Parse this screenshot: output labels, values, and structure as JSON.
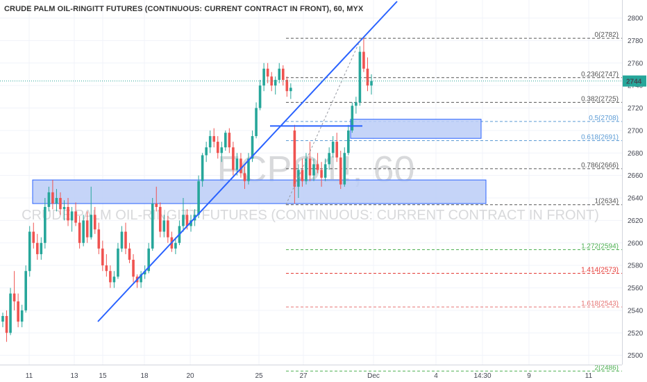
{
  "header": {
    "title": "CRUDE PALM OIL-RINGITT FUTURES (CONTINUOUS: CURRENT CONTRACT IN FRONT), 60, MYX"
  },
  "watermark": {
    "symbol": "FCPO1!, 60",
    "description": "CRUDE PALM OIL-RINGITT FUTURES (CONTINUOUS: CURRENT CONTRACT IN FRONT)"
  },
  "chart_data": {
    "type": "candlestick",
    "title": "CRUDE PALM OIL-RINGITT FUTURES (CONTINUOUS: CURRENT CONTRACT IN FRONT), 60, MYX",
    "y_axis": {
      "ticks": [
        2500,
        2520,
        2540,
        2560,
        2580,
        2600,
        2620,
        2640,
        2660,
        2680,
        2700,
        2720,
        2740,
        2760,
        2780,
        2800
      ],
      "ylim": [
        2482,
        2810
      ],
      "position": "right"
    },
    "x_axis": {
      "ticks": [
        "11",
        "13",
        "15",
        "18",
        "20",
        "25",
        "27",
        "Dec",
        "4",
        "14:30",
        "9",
        "11"
      ]
    },
    "last_price": 2744,
    "colors": {
      "up": "#26a69a",
      "down": "#ef5350",
      "trendline": "#2962ff",
      "zone_fill": "#bbccf7",
      "zone_border": "#2962ff",
      "last_price_line": "#26a69a"
    },
    "candles": [
      [
        2530,
        2538,
        2525,
        2535
      ],
      [
        2535,
        2540,
        2512,
        2520
      ],
      [
        2520,
        2560,
        2518,
        2555
      ],
      [
        2555,
        2575,
        2540,
        2548
      ],
      [
        2548,
        2555,
        2525,
        2530
      ],
      [
        2530,
        2545,
        2525,
        2540
      ],
      [
        2540,
        2580,
        2538,
        2575
      ],
      [
        2575,
        2615,
        2570,
        2610
      ],
      [
        2610,
        2618,
        2595,
        2600
      ],
      [
        2600,
        2608,
        2585,
        2590
      ],
      [
        2590,
        2605,
        2585,
        2600
      ],
      [
        2600,
        2640,
        2595,
        2632
      ],
      [
        2632,
        2650,
        2628,
        2645
      ],
      [
        2645,
        2656,
        2630,
        2635
      ],
      [
        2635,
        2648,
        2628,
        2640
      ],
      [
        2640,
        2645,
        2625,
        2630
      ],
      [
        2630,
        2638,
        2620,
        2632
      ],
      [
        2632,
        2640,
        2615,
        2620
      ],
      [
        2620,
        2632,
        2610,
        2628
      ],
      [
        2628,
        2636,
        2615,
        2618
      ],
      [
        2618,
        2624,
        2595,
        2600
      ],
      [
        2600,
        2625,
        2597,
        2620
      ],
      [
        2620,
        2628,
        2600,
        2605
      ],
      [
        2605,
        2650,
        2603,
        2625
      ],
      [
        2625,
        2632,
        2608,
        2612
      ],
      [
        2612,
        2618,
        2590,
        2595
      ],
      [
        2595,
        2602,
        2575,
        2580
      ],
      [
        2580,
        2590,
        2570,
        2575
      ],
      [
        2575,
        2580,
        2560,
        2565
      ],
      [
        2565,
        2575,
        2560,
        2570
      ],
      [
        2570,
        2600,
        2568,
        2595
      ],
      [
        2595,
        2615,
        2592,
        2610
      ],
      [
        2610,
        2618,
        2590,
        2595
      ],
      [
        2595,
        2600,
        2582,
        2585
      ],
      [
        2585,
        2590,
        2565,
        2570
      ],
      [
        2570,
        2572,
        2560,
        2565
      ],
      [
        2565,
        2575,
        2560,
        2572
      ],
      [
        2572,
        2580,
        2568,
        2575
      ],
      [
        2575,
        2600,
        2573,
        2595
      ],
      [
        2595,
        2640,
        2593,
        2635
      ],
      [
        2635,
        2650,
        2628,
        2632
      ],
      [
        2632,
        2636,
        2605,
        2610
      ],
      [
        2610,
        2625,
        2605,
        2620
      ],
      [
        2620,
        2624,
        2600,
        2605
      ],
      [
        2605,
        2610,
        2592,
        2595
      ],
      [
        2595,
        2605,
        2590,
        2600
      ],
      [
        2600,
        2620,
        2598,
        2615
      ],
      [
        2615,
        2640,
        2610,
        2625
      ],
      [
        2625,
        2630,
        2612,
        2615
      ],
      [
        2615,
        2625,
        2610,
        2620
      ],
      [
        2620,
        2630,
        2615,
        2625
      ],
      [
        2625,
        2660,
        2622,
        2655
      ],
      [
        2655,
        2680,
        2650,
        2678
      ],
      [
        2678,
        2690,
        2672,
        2685
      ],
      [
        2685,
        2700,
        2680,
        2695
      ],
      [
        2695,
        2702,
        2685,
        2690
      ],
      [
        2690,
        2695,
        2675,
        2680
      ],
      [
        2680,
        2690,
        2672,
        2685
      ],
      [
        2685,
        2700,
        2682,
        2698
      ],
      [
        2698,
        2702,
        2680,
        2685
      ],
      [
        2685,
        2690,
        2660,
        2665
      ],
      [
        2665,
        2680,
        2660,
        2675
      ],
      [
        2675,
        2680,
        2658,
        2662
      ],
      [
        2662,
        2668,
        2648,
        2655
      ],
      [
        2655,
        2680,
        2652,
        2675
      ],
      [
        2675,
        2700,
        2672,
        2695
      ],
      [
        2695,
        2725,
        2693,
        2720
      ],
      [
        2720,
        2745,
        2718,
        2740
      ],
      [
        2740,
        2760,
        2735,
        2755
      ],
      [
        2755,
        2760,
        2742,
        2748
      ],
      [
        2748,
        2752,
        2735,
        2740
      ],
      [
        2740,
        2748,
        2732,
        2745
      ],
      [
        2745,
        2760,
        2742,
        2755
      ],
      [
        2755,
        2758,
        2740,
        2745
      ],
      [
        2745,
        2748,
        2730,
        2735
      ],
      [
        2735,
        2742,
        2728,
        2738
      ],
      [
        2700,
        2705,
        2635,
        2650
      ],
      [
        2650,
        2670,
        2640,
        2665
      ],
      [
        2665,
        2675,
        2650,
        2655
      ],
      [
        2655,
        2680,
        2652,
        2675
      ],
      [
        2675,
        2690,
        2655,
        2660
      ],
      [
        2660,
        2675,
        2655,
        2670
      ],
      [
        2670,
        2680,
        2662,
        2665
      ],
      [
        2665,
        2672,
        2650,
        2658
      ],
      [
        2658,
        2675,
        2655,
        2670
      ],
      [
        2670,
        2685,
        2665,
        2680
      ],
      [
        2680,
        2695,
        2676,
        2690
      ],
      [
        2690,
        2698,
        2672,
        2676
      ],
      [
        2676,
        2682,
        2648,
        2652
      ],
      [
        2652,
        2685,
        2650,
        2680
      ],
      [
        2680,
        2705,
        2678,
        2700
      ],
      [
        2700,
        2725,
        2698,
        2722
      ],
      [
        2722,
        2730,
        2715,
        2725
      ],
      [
        2725,
        2775,
        2722,
        2770
      ],
      [
        2770,
        2782,
        2752,
        2755
      ],
      [
        2755,
        2765,
        2735,
        2740
      ],
      [
        2740,
        2750,
        2732,
        2744
      ]
    ],
    "fibonacci": [
      {
        "label": "0(2782)",
        "value": 2782,
        "color": "#555555"
      },
      {
        "label": "0.236(2747)",
        "value": 2747,
        "color": "#555555"
      },
      {
        "label": "0.382(2725)",
        "value": 2725,
        "color": "#555555"
      },
      {
        "label": "0.5(2708)",
        "value": 2708,
        "color": "#5b9bd5"
      },
      {
        "label": "0.618(2691)",
        "value": 2691,
        "color": "#5b9bd5"
      },
      {
        "label": "0.786(2666)",
        "value": 2666,
        "color": "#555555"
      },
      {
        "label": "1(2634)",
        "value": 2634,
        "color": "#555555"
      },
      {
        "label": "1.272(2594)",
        "value": 2594,
        "color": "#4caf50"
      },
      {
        "label": "1.414(2573)",
        "value": 2573,
        "color": "#e53935"
      },
      {
        "label": "1.618(2543)",
        "value": 2543,
        "color": "#e57373"
      },
      {
        "label": "2(2486)",
        "value": 2486,
        "color": "#4caf50"
      }
    ],
    "zones": [
      {
        "name": "demand-zone",
        "top": 2656,
        "bottom": 2635
      },
      {
        "name": "supply-zone",
        "top": 2710,
        "bottom": 2693
      }
    ]
  }
}
